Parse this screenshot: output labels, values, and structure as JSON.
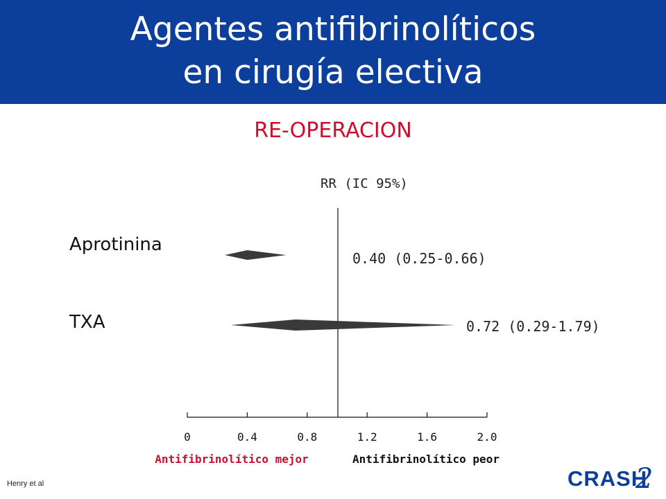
{
  "header": {
    "title_line1": "Agentes antifibrinolíticos",
    "title_line2": "en cirugía electiva",
    "background_color": "#0b3f9b"
  },
  "subtitle": "RE-OPERACION",
  "footer": {
    "citation": "Henry et al"
  },
  "logo": {
    "text": "CRASH",
    "numeral": "2",
    "colors": [
      "#0b3f9b",
      "#c8102e"
    ]
  },
  "chart_data": {
    "type": "forest",
    "column_header": "RR (IC 95%)",
    "reference_line": 1.0,
    "xlim": [
      0,
      2.0
    ],
    "x_ticks": [
      0,
      0.4,
      0.8,
      1.2,
      1.6,
      2.0
    ],
    "x_tick_labels": [
      "0",
      "0.4",
      "0.8",
      "1.2",
      "1.6",
      "2.0"
    ],
    "axis_labels": {
      "left": "Antifibrinolítico mejor",
      "right": "Antifibrinolítico peor",
      "color": "#c8102e"
    },
    "rows": [
      {
        "label": "Aprotinina",
        "rr": 0.4,
        "lower": 0.25,
        "upper": 0.66,
        "ci_text": "0.40 (0.25-0.66)"
      },
      {
        "label": "TXA",
        "rr": 0.72,
        "lower": 0.29,
        "upper": 1.79,
        "ci_text": "0.72 (0.29-1.79)"
      }
    ],
    "marker_color": "#3a3a3a"
  }
}
